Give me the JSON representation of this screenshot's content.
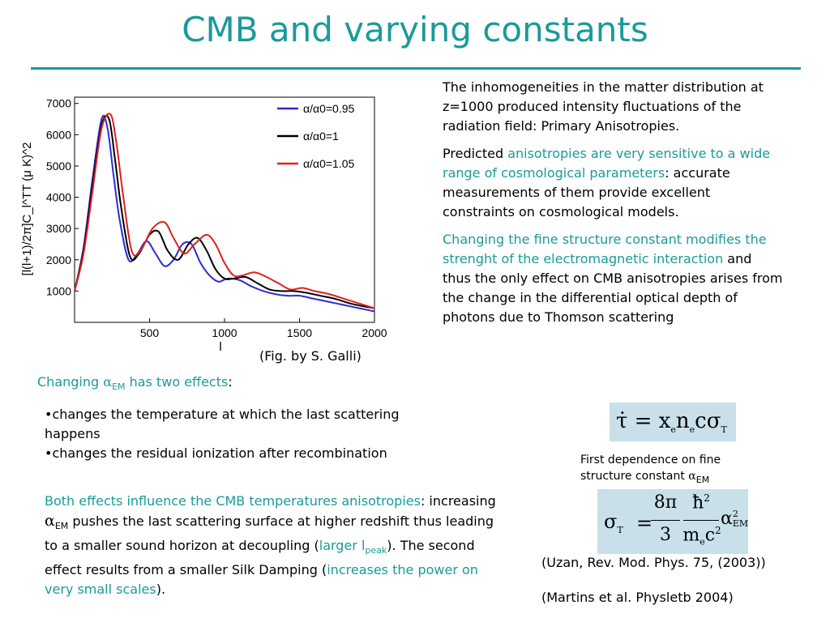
{
  "title": "CMB and varying constants",
  "chart_data": {
    "type": "line",
    "xlabel": "l",
    "ylabel": "[l(l+1)/2π]C_l^TT (μ K)^2",
    "xlim": [
      0,
      2000
    ],
    "ylim": [
      0,
      7200
    ],
    "xticks": [
      "500",
      "1000",
      "1500",
      "2000"
    ],
    "yticks": [
      "1000",
      "2000",
      "3000",
      "4000",
      "5000",
      "6000",
      "7000"
    ],
    "legend_position": "top-right",
    "series": [
      {
        "name": "α/α0=0.95",
        "color": "#2b2bd6",
        "x": [
          0,
          60,
          120,
          180,
          220,
          260,
          300,
          360,
          420,
          480,
          540,
          600,
          660,
          720,
          780,
          840,
          900,
          960,
          1020,
          1100,
          1180,
          1260,
          1340,
          1420,
          1500,
          1600,
          1700,
          1800,
          1900,
          2000
        ],
        "y": [
          1000,
          2400,
          4600,
          6500,
          6200,
          4700,
          3300,
          2000,
          2200,
          2600,
          2200,
          1800,
          2000,
          2500,
          2500,
          1900,
          1500,
          1300,
          1400,
          1350,
          1150,
          1000,
          900,
          850,
          850,
          750,
          650,
          550,
          450,
          350
        ]
      },
      {
        "name": "α/α0=1",
        "color": "#000000",
        "x": [
          0,
          60,
          120,
          180,
          230,
          270,
          310,
          370,
          430,
          500,
          560,
          620,
          690,
          760,
          820,
          880,
          940,
          1000,
          1060,
          1140,
          1220,
          1300,
          1380,
          1460,
          1540,
          1640,
          1740,
          1840,
          1940,
          2000
        ],
        "y": [
          1000,
          2300,
          4400,
          6300,
          6500,
          5200,
          3700,
          2100,
          2200,
          2800,
          2900,
          2300,
          2000,
          2500,
          2700,
          2300,
          1700,
          1400,
          1400,
          1450,
          1250,
          1050,
          1000,
          1000,
          950,
          850,
          750,
          600,
          500,
          450
        ]
      },
      {
        "name": "α/α0=1.05",
        "color": "#e02020",
        "x": [
          0,
          60,
          120,
          180,
          240,
          280,
          320,
          380,
          440,
          520,
          600,
          660,
          730,
          800,
          880,
          940,
          1000,
          1060,
          1120,
          1200,
          1280,
          1360,
          1440,
          1520,
          1600,
          1700,
          1800,
          1900,
          2000
        ],
        "y": [
          1000,
          2200,
          4200,
          6200,
          6650,
          5700,
          4200,
          2300,
          2300,
          3000,
          3200,
          2700,
          2200,
          2500,
          2800,
          2500,
          1900,
          1500,
          1500,
          1600,
          1450,
          1250,
          1050,
          1100,
          1000,
          900,
          750,
          600,
          450
        ]
      }
    ]
  },
  "fig_credit": "(Fig. by S. Galli)",
  "right": {
    "p1": "The inhomogeneities in the matter distribution at z=1000  produced intensity fluctuations  of the radiation field: Primary Anisotropies.",
    "p2_a": "Predicted ",
    "p2_b": "anisotropies are very sensitive to a wide range of cosmological parameters",
    "p2_c": ": accurate measurements of them provide excellent constraints on cosmological models.",
    "p3_a": "Changing the fine structure constant modifies the strenght of the electromagnetic interaction",
    "p3_b": " and thus the only effect on CMB anisotropies arises from the change in the differential optical depth of photons due to Thomson scattering"
  },
  "left": {
    "changing_a": "Changing  ",
    "alpha": "α",
    "em": "EM",
    "changing_b": " has two effects",
    "colon": ":",
    "bullet1": "•changes the temperature at which the last scattering happens",
    "bullet2": "•changes the residual ionization after recombination",
    "both_a": "Both effects influence the CMB temperatures anisotropies",
    "both_b": ": increasing ",
    "both_c": " pushes the last scattering surface at higher redshift thus leading to a smaller sound horizon at decoupling (",
    "larger": "larger l",
    "peak": "peak",
    "both_d": "). The second effect results from a smaller Silk Damping (",
    "increases": "increases the power on very small scales",
    "both_e": ")."
  },
  "first_dep": "First dependence on fine structure constant ",
  "formula1": {
    "tau": "τ̇",
    "eq": " = ",
    "x": "x",
    "e": "e",
    "n": "n",
    "c": "c",
    "sigma": "σ",
    "T": "T"
  },
  "formula2": {
    "lhs": "σ",
    "T": "T",
    "eq": "=",
    "num1": "8π",
    "den1": "3",
    "hbar": "ħ",
    "two": "2",
    "m": "m",
    "e": "e",
    "c": "c",
    "alpha": "α",
    "EM": "EM"
  },
  "refs": [
    "(Uzan, Rev. Mod. Phys. 75, (2003))",
    "(Martins et al. Physletb 2004)"
  ]
}
